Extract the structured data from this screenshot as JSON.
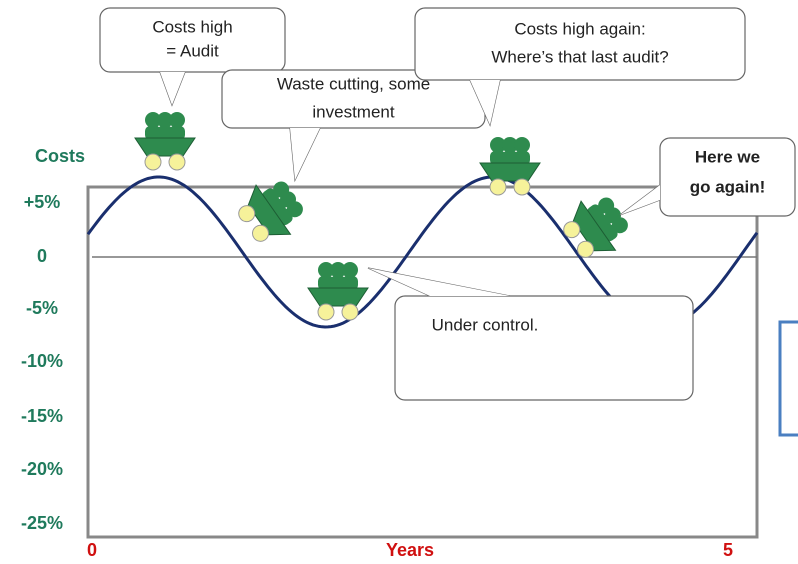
{
  "axis": {
    "y_title": "Costs",
    "y_labels": [
      "+5%",
      "0",
      "-5%",
      "-10%",
      "-15%",
      "-20%",
      "-25%"
    ],
    "x_labels": [
      "0",
      "Years",
      "5"
    ]
  },
  "callouts": [
    {
      "lines": [
        "Costs high",
        "= Audit"
      ]
    },
    {
      "lines": [
        "Waste cutting, some",
        "investment"
      ]
    },
    {
      "lines": [
        "Costs high again:",
        "Where’s that last audit?"
      ]
    },
    {
      "lines": [
        "Here we",
        "go again!"
      ]
    },
    {
      "lines": [
        "Under control."
      ]
    }
  ]
}
